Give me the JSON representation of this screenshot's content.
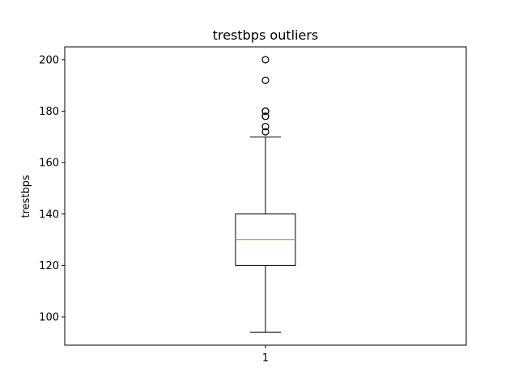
{
  "chart_data": {
    "type": "box",
    "title": "trestbps outliers",
    "xlabel": "",
    "ylabel": "trestbps",
    "ylim": [
      89,
      205
    ],
    "yticks": [
      100,
      120,
      140,
      160,
      180,
      200
    ],
    "xticks": [
      "1"
    ],
    "grid": false,
    "boxes": [
      {
        "category": "1",
        "whisker_low": 94,
        "q1": 120,
        "median": 130,
        "q3": 140,
        "whisker_high": 170,
        "outliers": [
          172,
          174,
          178,
          178,
          180,
          180,
          192,
          200
        ]
      }
    ],
    "colors": {
      "box": "#000000",
      "median": "#ff7f0e",
      "outlier": "#000000"
    }
  }
}
